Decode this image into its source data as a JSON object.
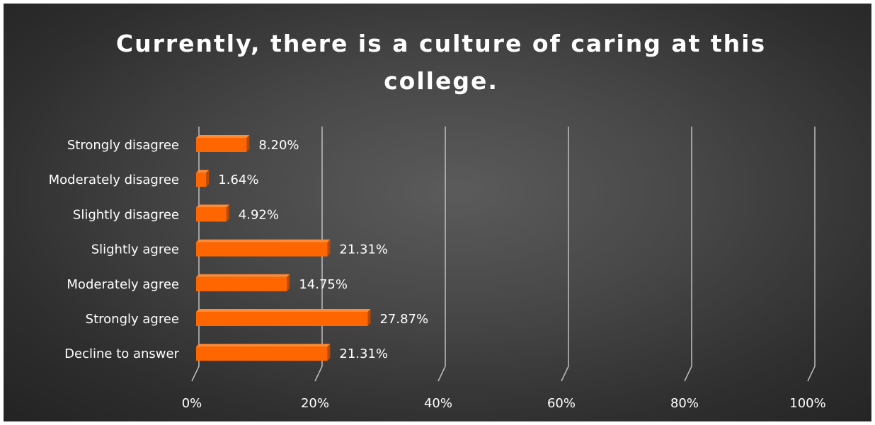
{
  "colors": {
    "bar_front": "#ff6600",
    "bar_top": "#ff8a33",
    "bar_side": "#b84a00",
    "gridline": "#bfbfbf",
    "text": "#ffffff"
  },
  "chart_data": {
    "type": "bar",
    "orientation": "horizontal",
    "style": "3d-clustered",
    "title": "Currently, there is a culture of caring at this college.",
    "categories": [
      "Strongly disagree",
      "Moderately disagree",
      "Slightly disagree",
      "Slightly agree",
      "Moderately agree",
      "Strongly agree",
      "Decline to answer"
    ],
    "values": [
      8.2,
      1.64,
      4.92,
      21.31,
      14.75,
      27.87,
      21.31
    ],
    "value_labels": [
      "8.20%",
      "1.64%",
      "4.92%",
      "21.31%",
      "14.75%",
      "27.87%",
      "21.31%"
    ],
    "xlim": [
      0,
      100
    ],
    "x_ticks": [
      0,
      20,
      40,
      60,
      80,
      100
    ],
    "x_tick_labels": [
      "0%",
      "20%",
      "40%",
      "60%",
      "80%",
      "100%"
    ],
    "grid": true,
    "legend": "none"
  }
}
